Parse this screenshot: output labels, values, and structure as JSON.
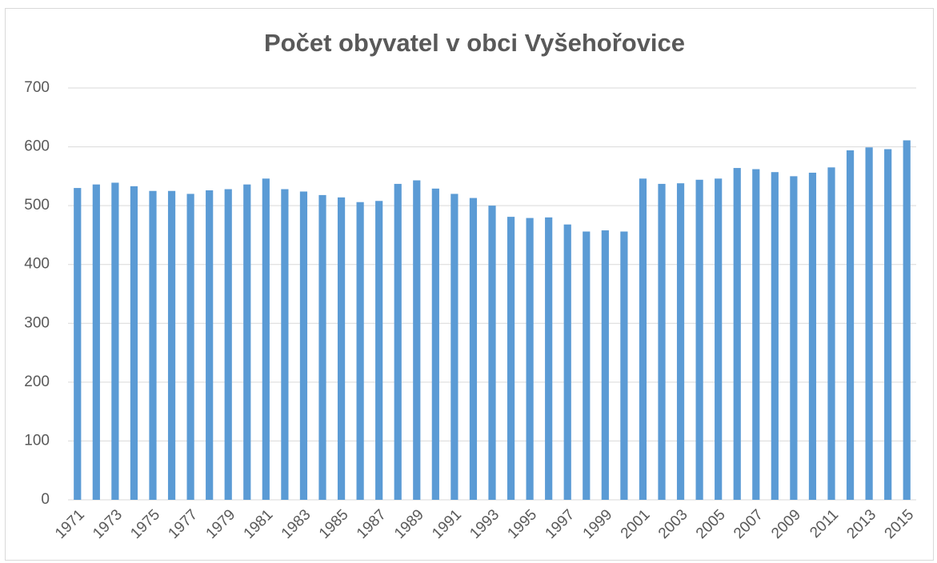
{
  "chart_data": {
    "type": "bar",
    "title": "Počet obyvatel v obci Vyšehořovice",
    "categories": [
      "1971",
      null,
      "1973",
      null,
      "1975",
      null,
      "1977",
      null,
      "1979",
      null,
      "1981",
      null,
      "1983",
      null,
      "1985",
      null,
      "1987",
      null,
      "1989",
      null,
      "1991",
      null,
      "1993",
      null,
      "1995",
      null,
      "1997",
      null,
      "1999",
      null,
      "2001",
      null,
      "2003",
      null,
      "2005",
      null,
      "2007",
      null,
      "2009",
      null,
      "2011",
      null,
      "2013",
      null,
      "2015"
    ],
    "values": [
      530,
      536,
      539,
      533,
      525,
      525,
      520,
      526,
      528,
      536,
      546,
      528,
      524,
      518,
      514,
      506,
      508,
      537,
      543,
      529,
      520,
      513,
      500,
      481,
      479,
      480,
      468,
      456,
      458,
      456,
      546,
      537,
      538,
      544,
      546,
      564,
      562,
      557,
      550,
      556,
      565,
      594,
      599,
      596,
      611
    ],
    "color": "#5b9bd5",
    "ylim": [
      0,
      700
    ],
    "yticks": [
      0,
      100,
      200,
      300,
      400,
      500,
      600,
      700
    ],
    "grid": true
  }
}
